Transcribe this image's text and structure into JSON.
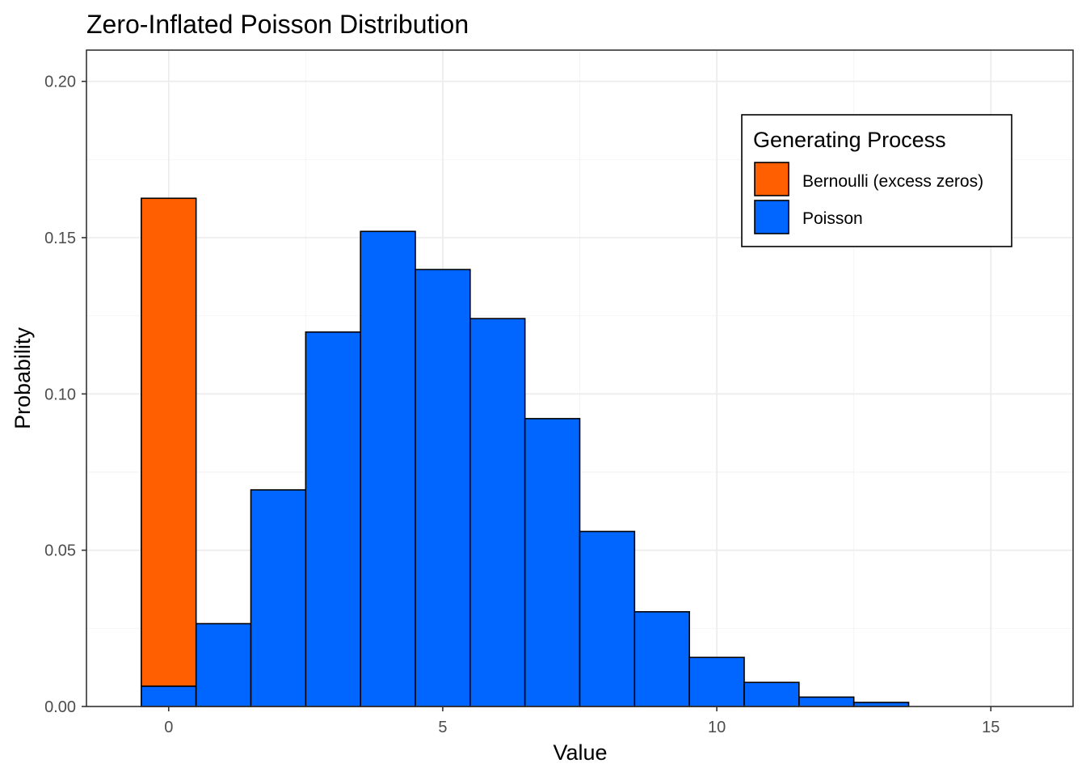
{
  "chart_data": {
    "type": "bar",
    "title": "Zero-Inflated Poisson Distribution",
    "xlabel": "Value",
    "ylabel": "Probability",
    "xlim": [
      -1.5,
      16.5
    ],
    "ylim": [
      0,
      0.21
    ],
    "x_ticks": [
      0,
      5,
      10,
      15
    ],
    "x_tick_labels": [
      "0",
      "5",
      "10",
      "15"
    ],
    "y_ticks": [
      0.0,
      0.05,
      0.1,
      0.15,
      0.2
    ],
    "y_tick_labels": [
      "0.00",
      "0.05",
      "0.10",
      "0.15",
      "0.20"
    ],
    "grid": true,
    "stacked": true,
    "bar_width": 1,
    "x": [
      0,
      1,
      2,
      3,
      4,
      5,
      6,
      7,
      8,
      9,
      10,
      11,
      12,
      13
    ],
    "series": [
      {
        "name": "Poisson",
        "color": "#0066ff",
        "values": [
          0.0065,
          0.0265,
          0.0693,
          0.1198,
          0.152,
          0.1398,
          0.1241,
          0.0921,
          0.056,
          0.0303,
          0.0157,
          0.0077,
          0.003,
          0.0013
        ]
      },
      {
        "name": "Bernoulli (excess zeros)",
        "color": "#ff5f00",
        "values": [
          0.1561,
          0,
          0,
          0,
          0,
          0,
          0,
          0,
          0,
          0,
          0,
          0,
          0,
          0
        ]
      }
    ],
    "legend": {
      "title": "Generating Process",
      "placement": "top-right",
      "entries": [
        {
          "label": "Bernoulli (excess zeros)",
          "color": "#ff5f00"
        },
        {
          "label": "Poisson",
          "color": "#0066ff"
        }
      ]
    }
  }
}
